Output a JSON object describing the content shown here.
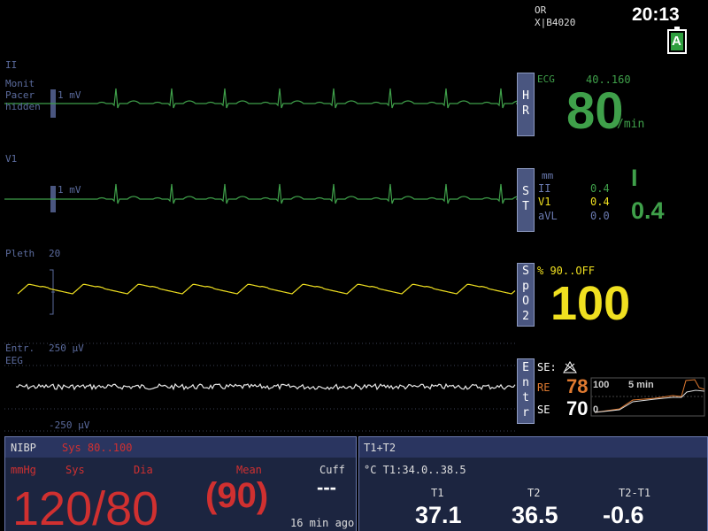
{
  "header": {
    "location": "OR",
    "bed": "X|B4020",
    "time": "20:13",
    "battery": "A"
  },
  "waves": [
    {
      "lead": "II",
      "notes": [
        "Monit",
        "Pacer",
        "hidden"
      ],
      "scale": "1 mV"
    },
    {
      "lead": "V1",
      "scale": "1 mV"
    },
    {
      "lead": "Pleth",
      "scale": "20"
    },
    {
      "lead": "Entr.",
      "sub": "EEG",
      "scale_top": "250 µV",
      "scale_bottom": "-250 µV"
    }
  ],
  "hr": {
    "tab": "HR",
    "source": "ECG",
    "limits": "40..160",
    "value": "80",
    "unit": "/min"
  },
  "st": {
    "tab": "ST",
    "unit": "mm",
    "rows": [
      [
        "II",
        "0.4"
      ],
      [
        "V1",
        "0.4"
      ],
      [
        "aVL",
        "0.0"
      ]
    ],
    "lead": "I",
    "value": "0.4"
  },
  "spo2": {
    "tab": "SpO2",
    "limits": "% 90..OFF",
    "value": "100"
  },
  "entropy": {
    "tab": "Entr",
    "se_label": "SE:",
    "re_label": "RE",
    "re": "78",
    "se_label2": "SE",
    "se": "70",
    "trend_top": "100",
    "trend_span": "5 min",
    "trend_bottom": "0"
  },
  "nibp": {
    "title": "NIBP",
    "limits": "Sys 80..100",
    "unit": "mmHg",
    "sys_label": "Sys",
    "dia_label": "Dia",
    "mean_label": "Mean",
    "cuff_label": "Cuff",
    "value": "120/80",
    "mean": "(90)",
    "cuff": "---",
    "age": "16 min ago"
  },
  "temp": {
    "title": "T1+T2",
    "limits": "°C T1:34.0..38.5",
    "labels": [
      "T1",
      "T2",
      "T2-T1"
    ],
    "values": [
      "37.1",
      "36.5",
      "-0.6"
    ]
  }
}
